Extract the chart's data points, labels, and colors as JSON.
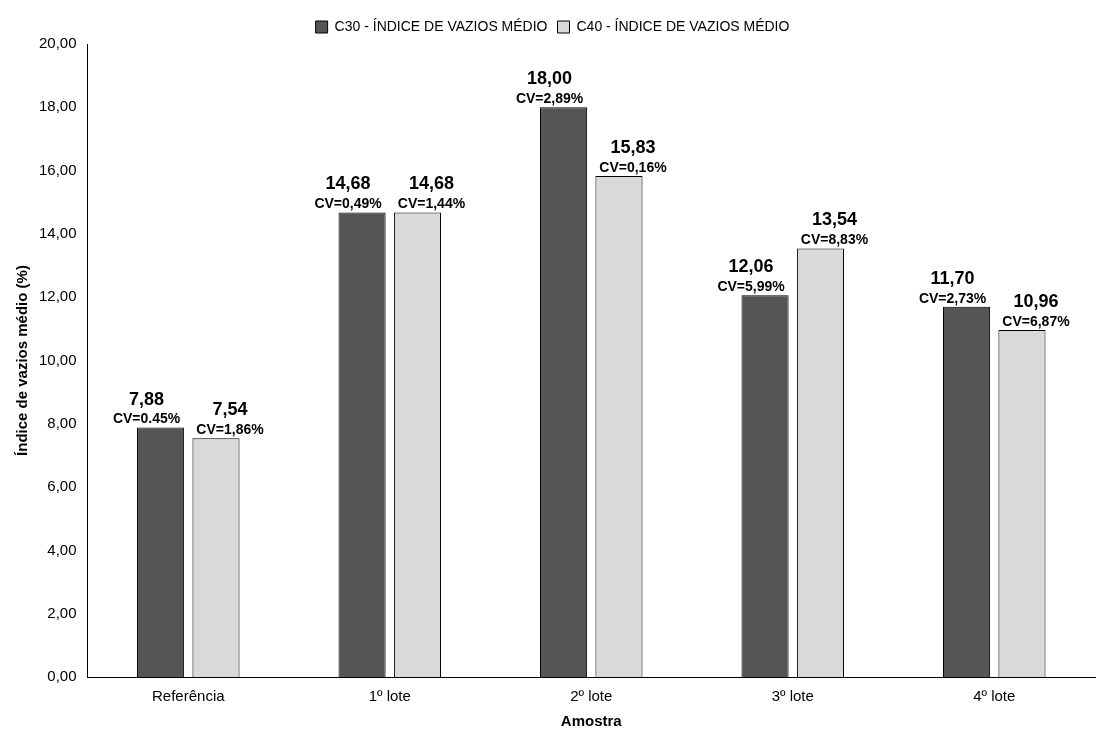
{
  "chart_data": {
    "type": "bar",
    "xlabel": "Amostra",
    "ylabel": "Índice de vazios médio (%)",
    "categories": [
      "Referência",
      "1º lote",
      "2º lote",
      "3º lote",
      "4º lote"
    ],
    "series": [
      {
        "name": "C30 - ÍNDICE DE VAZIOS MÉDIO",
        "color": "#555555",
        "values": [
          7.88,
          14.68,
          18.0,
          12.06,
          11.7
        ],
        "value_labels": [
          "7,88",
          "14,68",
          "18,00",
          "12,06",
          "11,70"
        ]
      },
      {
        "name": "C40 - ÍNDICE DE VAZIOS MÉDIO",
        "color": "#d9d9d9",
        "values": [
          7.54,
          14.68,
          15.83,
          13.54,
          10.96
        ],
        "value_labels": [
          "7,54",
          "14,68",
          "15,83",
          "13,54",
          "10,96"
        ]
      }
    ],
    "ylim": [
      0,
      20
    ],
    "yticks": [
      {
        "value": 0,
        "label": "0,00"
      },
      {
        "value": 2,
        "label": "2,00"
      },
      {
        "value": 4,
        "label": "4,00"
      },
      {
        "value": 6,
        "label": "6,00"
      },
      {
        "value": 8,
        "label": "8,00"
      },
      {
        "value": 10,
        "label": "10,00"
      },
      {
        "value": 12,
        "label": "12,00"
      },
      {
        "value": 14,
        "label": "14,00"
      },
      {
        "value": 16,
        "label": "16,00"
      },
      {
        "value": 18,
        "label": "18,00"
      },
      {
        "value": 20,
        "label": "20,00"
      }
    ],
    "grid": false,
    "legend": "top",
    "annotations": [
      "CV=0.45%",
      "CV=1,86%",
      "CV=0,49%",
      "CV=1,44%",
      "CV=2,89%",
      "CV=0,16%",
      "CV=5,99%",
      "CV=8,83%",
      "CV=2,73%",
      "CV=6,87%"
    ]
  }
}
